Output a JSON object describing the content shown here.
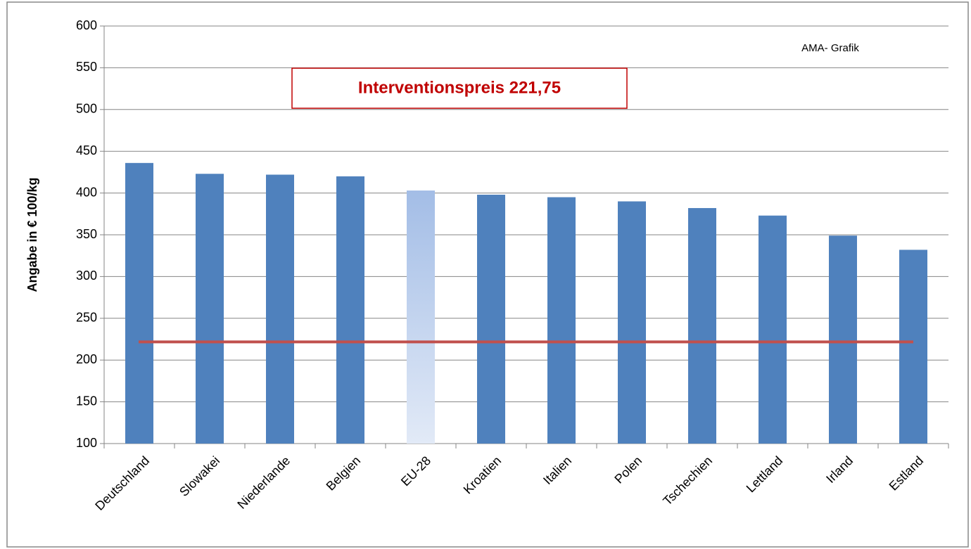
{
  "chart_data": {
    "type": "bar",
    "y_label": "Angabe in € 100/kg",
    "annotation": "AMA- Grafik",
    "categories": [
      "Deutschland",
      "Slowakei",
      "Niederlande",
      "Belgien",
      "EU-28",
      "Kroatien",
      "Italien",
      "Polen",
      "Tschechien",
      "Lettland",
      "Irland",
      "Estland"
    ],
    "values": [
      436,
      423,
      422,
      420,
      403,
      398,
      395,
      390,
      382,
      373,
      349,
      332
    ],
    "colors": [
      "#4f81bd",
      "#4f81bd",
      "#4f81bd",
      "#4f81bd",
      "#a3bde6",
      "#4f81bd",
      "#4f81bd",
      "#4f81bd",
      "#4f81bd",
      "#4f81bd",
      "#4f81bd",
      "#4f81bd"
    ],
    "reference_line": {
      "value": 221.75,
      "label": "Interventionspreis 221,75",
      "color": "#c0504d"
    },
    "ylim": [
      100,
      600
    ],
    "yticks": [
      100,
      150,
      200,
      250,
      300,
      350,
      400,
      450,
      500,
      550,
      600
    ],
    "grid": true
  }
}
